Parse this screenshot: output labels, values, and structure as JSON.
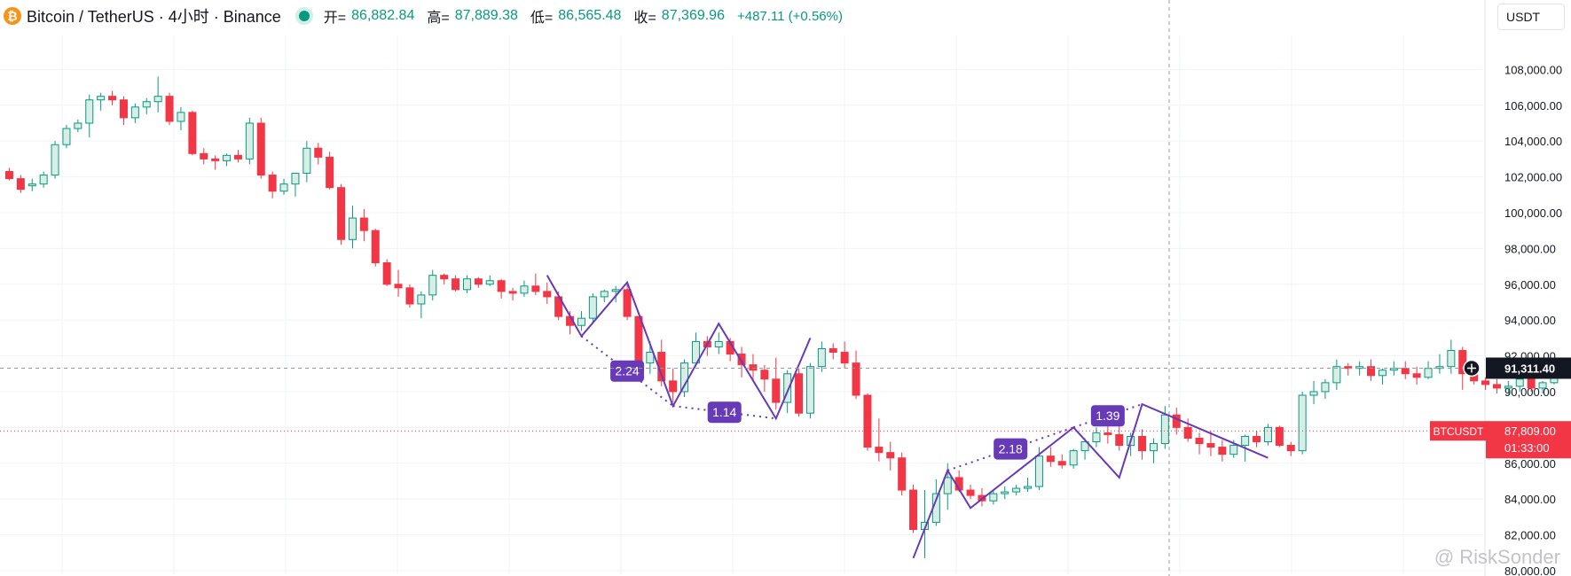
{
  "header": {
    "title": "Bitcoin / TetherUS · 4小时 · Binance",
    "coin_glyph": "₿",
    "open_label": "开=",
    "open_value": "86,882.84",
    "high_label": "高=",
    "high_value": "87,889.38",
    "low_label": "低=",
    "low_value": "86,565.48",
    "close_label": "收=",
    "close_value": "87,369.96",
    "change": "+487.11 (+0.56%)"
  },
  "currency_selector": {
    "value": "USDT"
  },
  "watermark": "@ RiskSonder",
  "colors": {
    "up": "#089981",
    "up_fill": "#d8ede6",
    "down": "#f23645",
    "pattern": "#673ab7"
  },
  "chart_data": {
    "type": "candlestick",
    "symbol": "BTCUSDT",
    "y_ticks": [
      108000,
      106000,
      104000,
      102000,
      100000,
      98000,
      96000,
      94000,
      92000,
      90000,
      88000,
      86000,
      84000,
      82000,
      80000
    ],
    "y_tick_labels": [
      "108,000.00",
      "106,000.00",
      "104,000.00",
      "102,000.00",
      "100,000.00",
      "98,000.00",
      "96,000.00",
      "94,000.00",
      "92,000.00",
      "90,000.00",
      "88,000.00",
      "86,000.00",
      "84,000.00",
      "82,000.00",
      "80,000.00"
    ],
    "ylim": [
      79800,
      109900
    ],
    "candles": [
      [
        102300,
        102500,
        101800,
        101900
      ],
      [
        101900,
        102100,
        101100,
        101300
      ],
      [
        101500,
        101900,
        101200,
        101600
      ],
      [
        101600,
        102300,
        101400,
        102100
      ],
      [
        102100,
        104000,
        101900,
        103800
      ],
      [
        103800,
        104900,
        103600,
        104700
      ],
      [
        104700,
        105200,
        104500,
        105000
      ],
      [
        105000,
        106600,
        104200,
        106300
      ],
      [
        106300,
        106700,
        105700,
        106500
      ],
      [
        106500,
        106800,
        106000,
        106300
      ],
      [
        106300,
        106500,
        104900,
        105300
      ],
      [
        105300,
        106100,
        105000,
        105900
      ],
      [
        105900,
        106400,
        105500,
        106200
      ],
      [
        106200,
        107600,
        105600,
        106500
      ],
      [
        106500,
        106700,
        104900,
        105100
      ],
      [
        105100,
        105900,
        104600,
        105600
      ],
      [
        105600,
        105700,
        103200,
        103300
      ],
      [
        103300,
        103600,
        102700,
        103000
      ],
      [
        103000,
        103200,
        102400,
        102900
      ],
      [
        102900,
        103300,
        102600,
        103200
      ],
      [
        103200,
        103500,
        102800,
        103000
      ],
      [
        103000,
        105300,
        102700,
        105000
      ],
      [
        105000,
        105300,
        101900,
        102100
      ],
      [
        102100,
        102300,
        100800,
        101200
      ],
      [
        101200,
        101900,
        101000,
        101600
      ],
      [
        101600,
        102200,
        100900,
        102200
      ],
      [
        102200,
        104000,
        101700,
        103600
      ],
      [
        103600,
        103900,
        102700,
        103100
      ],
      [
        103100,
        103400,
        101300,
        101400
      ],
      [
        101400,
        101600,
        98200,
        98500
      ],
      [
        98500,
        100400,
        98000,
        99700
      ],
      [
        99700,
        100200,
        98400,
        99000
      ],
      [
        99000,
        99100,
        97000,
        97200
      ],
      [
        97200,
        97400,
        95900,
        96000
      ],
      [
        96000,
        96800,
        95300,
        95800
      ],
      [
        95800,
        96000,
        94700,
        94900
      ],
      [
        94900,
        95600,
        94100,
        95400
      ],
      [
        95400,
        96800,
        95100,
        96500
      ],
      [
        96500,
        96600,
        96000,
        96300
      ],
      [
        96300,
        96500,
        95600,
        95700
      ],
      [
        95700,
        96500,
        95500,
        96300
      ],
      [
        96300,
        96400,
        95800,
        96000
      ],
      [
        96000,
        96500,
        95900,
        96200
      ],
      [
        96200,
        96300,
        95200,
        95600
      ],
      [
        95600,
        95800,
        95100,
        95500
      ],
      [
        95500,
        96200,
        95300,
        95900
      ],
      [
        95900,
        96600,
        95400,
        95600
      ],
      [
        95600,
        96100,
        94900,
        95300
      ],
      [
        95300,
        95600,
        94000,
        94200
      ],
      [
        94200,
        94500,
        93200,
        93700
      ],
      [
        93700,
        94500,
        93400,
        94100
      ],
      [
        94100,
        95500,
        93800,
        95300
      ],
      [
        95300,
        95700,
        95000,
        95600
      ],
      [
        95600,
        95900,
        95000,
        95700
      ],
      [
        95700,
        96000,
        94000,
        94200
      ],
      [
        94200,
        94200,
        91400,
        91600
      ],
      [
        91600,
        92800,
        91000,
        92200
      ],
      [
        92200,
        92900,
        90300,
        90600
      ],
      [
        90600,
        91300,
        89400,
        90000
      ],
      [
        90000,
        91800,
        89700,
        91600
      ],
      [
        91600,
        93300,
        91400,
        92800
      ],
      [
        92800,
        93100,
        92000,
        92500
      ],
      [
        92500,
        93300,
        92100,
        92800
      ],
      [
        92800,
        93000,
        91700,
        92100
      ],
      [
        92100,
        92500,
        90800,
        91500
      ],
      [
        91500,
        92100,
        90600,
        91200
      ],
      [
        91200,
        91500,
        90000,
        90700
      ],
      [
        90700,
        91900,
        89000,
        89400
      ],
      [
        89400,
        91200,
        88800,
        91000
      ],
      [
        91000,
        91300,
        88600,
        88800
      ],
      [
        88800,
        91600,
        88500,
        91400
      ],
      [
        91400,
        92800,
        91100,
        92400
      ],
      [
        92400,
        92700,
        91800,
        92200
      ],
      [
        92200,
        92800,
        91300,
        91600
      ],
      [
        91600,
        92300,
        89600,
        89800
      ],
      [
        89800,
        89900,
        86700,
        86900
      ],
      [
        86900,
        88500,
        86100,
        86600
      ],
      [
        86600,
        87200,
        85600,
        86300
      ],
      [
        86300,
        86600,
        84200,
        84500
      ],
      [
        84500,
        84800,
        82100,
        82300
      ],
      [
        82300,
        84500,
        80700,
        82700
      ],
      [
        82700,
        85100,
        82500,
        84300
      ],
      [
        84300,
        86000,
        83400,
        85200
      ],
      [
        85200,
        85600,
        84400,
        84500
      ],
      [
        84500,
        84800,
        84000,
        84200
      ],
      [
        84200,
        84600,
        83600,
        83900
      ],
      [
        83900,
        84500,
        83700,
        84300
      ],
      [
        84300,
        84700,
        84000,
        84400
      ],
      [
        84400,
        84800,
        84200,
        84600
      ],
      [
        84600,
        85200,
        84400,
        84700
      ],
      [
        84700,
        86900,
        84500,
        86400
      ],
      [
        86400,
        86900,
        85800,
        86100
      ],
      [
        86100,
        86500,
        85700,
        85900
      ],
      [
        85900,
        86800,
        85700,
        86700
      ],
      [
        86700,
        87400,
        86200,
        87200
      ],
      [
        87200,
        88000,
        86900,
        87700
      ],
      [
        87700,
        88200,
        87100,
        87600
      ],
      [
        87600,
        88100,
        86700,
        87000
      ],
      [
        87000,
        87700,
        86400,
        87500
      ],
      [
        87500,
        87900,
        86200,
        86700
      ],
      [
        86700,
        87400,
        86000,
        87100
      ],
      [
        87100,
        89200,
        86800,
        88700
      ],
      [
        88700,
        89100,
        87600,
        88000
      ],
      [
        88000,
        88500,
        87200,
        87400
      ],
      [
        87400,
        87700,
        86500,
        87100
      ],
      [
        87100,
        87800,
        86400,
        86900
      ],
      [
        86900,
        87300,
        86100,
        86500
      ],
      [
        86500,
        87300,
        86300,
        87000
      ],
      [
        87000,
        87600,
        86100,
        87500
      ],
      [
        87500,
        87800,
        86900,
        87200
      ],
      [
        87200,
        88200,
        87000,
        88000
      ],
      [
        88000,
        88100,
        86900,
        87000
      ],
      [
        87000,
        87200,
        86400,
        86700
      ],
      [
        86700,
        90000,
        86500,
        89800
      ],
      [
        89800,
        90600,
        89300,
        90000
      ],
      [
        90000,
        90700,
        89600,
        90500
      ],
      [
        90500,
        91800,
        90100,
        91400
      ],
      [
        91400,
        91600,
        90900,
        91300
      ],
      [
        91300,
        91700,
        90900,
        91400
      ],
      [
        91400,
        91800,
        90600,
        90900
      ],
      [
        90900,
        91300,
        90400,
        91200
      ],
      [
        91200,
        91700,
        90900,
        91300
      ],
      [
        91300,
        91700,
        90700,
        91000
      ],
      [
        91000,
        91400,
        90400,
        90800
      ],
      [
        90800,
        91700,
        90700,
        91300
      ],
      [
        91300,
        92100,
        91000,
        91400
      ],
      [
        91400,
        92900,
        91000,
        92300
      ],
      [
        92300,
        92500,
        90100,
        91000
      ],
      [
        91000,
        91100,
        90400,
        90600
      ],
      [
        90600,
        90800,
        90100,
        90400
      ],
      [
        90400,
        90700,
        89900,
        90200
      ],
      [
        90200,
        90600,
        89800,
        90300
      ],
      [
        90300,
        90800,
        90000,
        90700
      ],
      [
        90700,
        91000,
        90000,
        90200
      ],
      [
        90200,
        90600,
        89900,
        90500
      ],
      [
        90500,
        91000,
        90400,
        90800
      ]
    ],
    "current_price": 91311.4,
    "current_price_label": "91,311.40",
    "last_price": 87809.0,
    "last_price_label": "87,809.00",
    "countdown": "01:33:00",
    "pattern_label_values": [
      "2.24",
      "1.14",
      "2.18",
      "1.39"
    ],
    "pattern_a": {
      "points": [
        [
          47,
          96500
        ],
        [
          50,
          93100
        ],
        [
          54,
          96100
        ],
        [
          58,
          89200
        ],
        [
          62,
          93800
        ],
        [
          67,
          88500
        ],
        [
          70,
          93000
        ]
      ],
      "dotted_1": [
        [
          50,
          93100
        ],
        [
          58,
          89200
        ]
      ],
      "dotted_2": [
        [
          58,
          89200
        ],
        [
          67,
          88500
        ]
      ]
    },
    "pattern_b": {
      "points": [
        [
          79,
          80700
        ],
        [
          82,
          85600
        ],
        [
          84,
          83500
        ],
        [
          93,
          88000
        ],
        [
          97,
          85200
        ],
        [
          99,
          89300
        ],
        [
          110,
          86300
        ]
      ],
      "dotted_1": [
        [
          82,
          85600
        ],
        [
          93,
          88000
        ]
      ],
      "dotted_2": [
        [
          93,
          88000
        ],
        [
          99,
          89300
        ]
      ]
    }
  }
}
